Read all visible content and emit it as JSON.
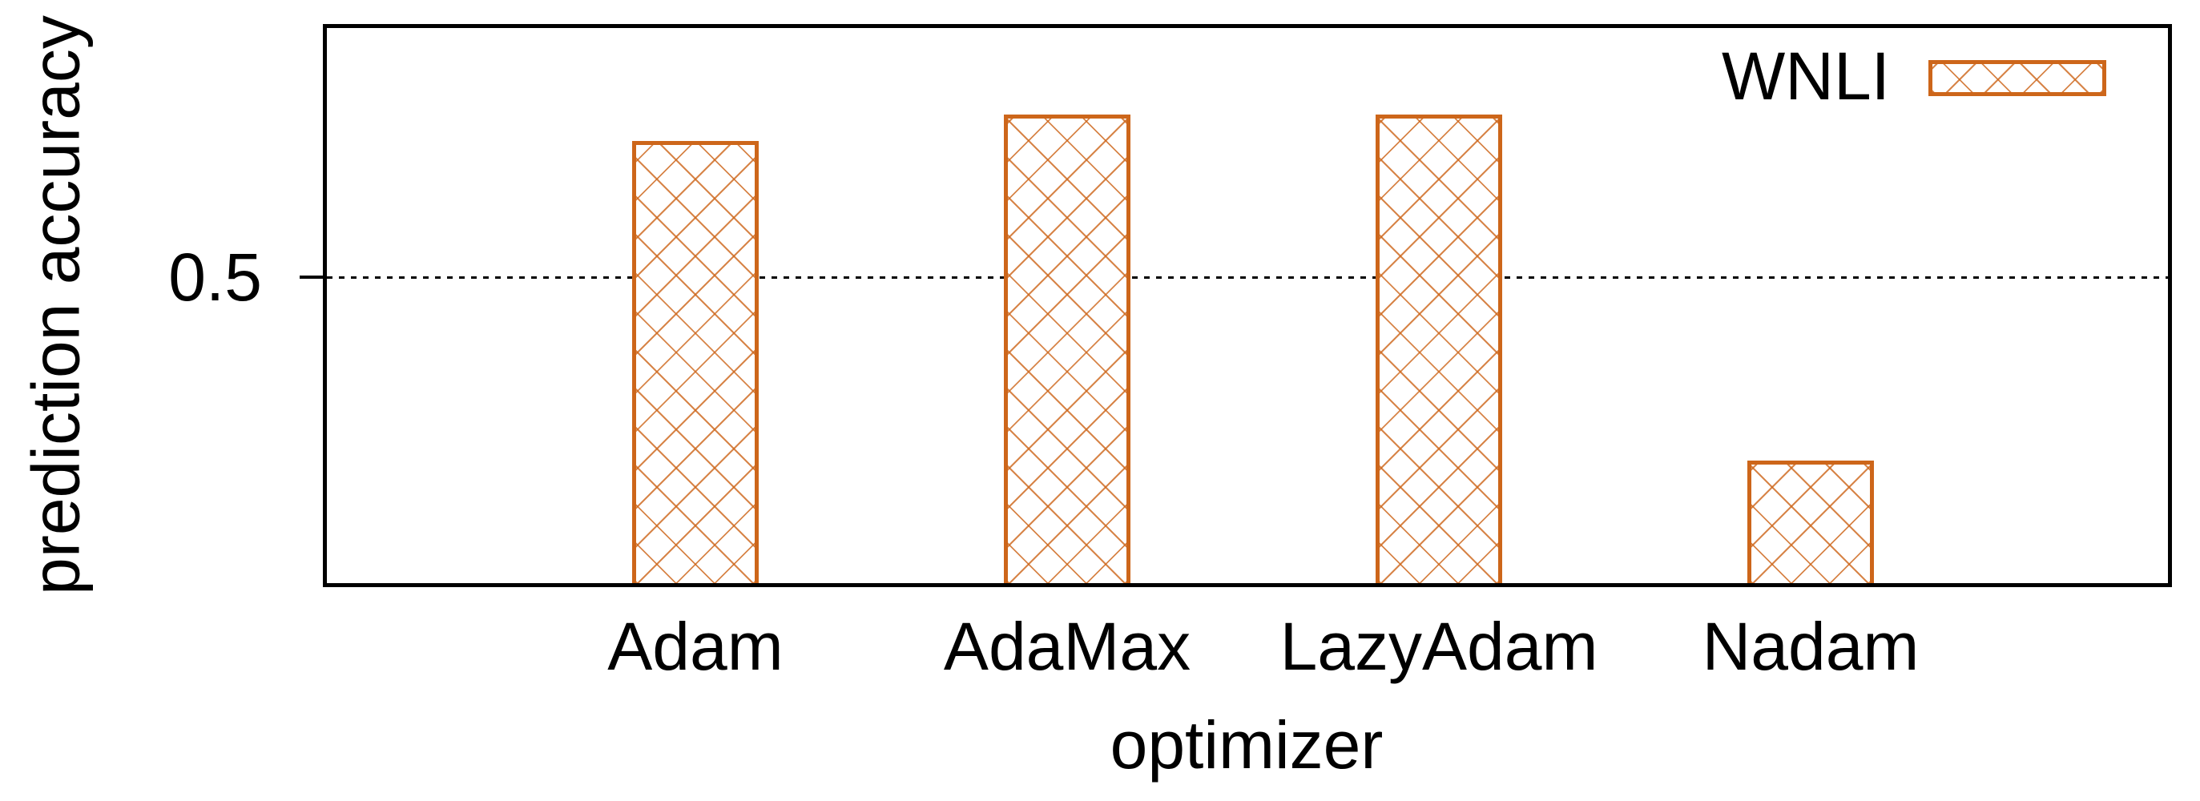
{
  "chart_data": {
    "type": "bar",
    "title": "",
    "categories": [
      "Adam",
      "AdaMax",
      "LazyAdam",
      "Nadam"
    ],
    "series": [
      {
        "name": "WNLI",
        "values": [
          0.571,
          0.585,
          0.585,
          0.404
        ]
      }
    ],
    "xlabel": "optimizer",
    "ylabel": "prediction accuracy",
    "ylim": [
      0.34,
      0.63
    ],
    "yticks": [
      {
        "value": 0.5,
        "label": "0.5"
      }
    ],
    "grid": "horizontal dashed gridline at each ytick",
    "legend_position": "top-right inside plot",
    "bar_style": "white fill with diagonal crosshatch, heavy outline",
    "colors": {
      "bar_border": "#cd661a",
      "bar_hatch": "rgba(205,102,26,0.8)",
      "frame": "#000000",
      "text": "#000000",
      "gridline": "#000000",
      "background": "#ffffff"
    }
  }
}
